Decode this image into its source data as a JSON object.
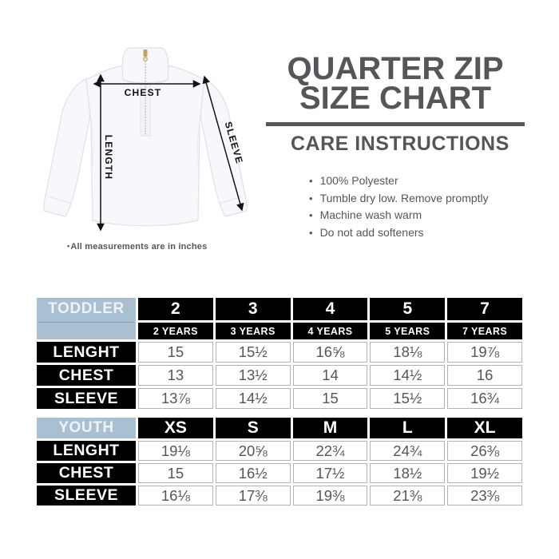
{
  "diagram": {
    "labels": {
      "chest": "CHEST",
      "length": "LENGTH",
      "sleeve": "SLEEVE"
    },
    "note_bullet": "•",
    "note": "All measurements are in inches"
  },
  "header": {
    "title_line1": "QUARTER ZIP",
    "title_line2": "SIZE CHART",
    "care_title": "CARE INSTRUCTIONS",
    "bullet_char": "•",
    "care_items": [
      "100% Polyester",
      "Tumble dry low. Remove promptly",
      "Machine wash warm",
      "Do not add softeners"
    ]
  },
  "colors": {
    "title_gray": "#55565a",
    "table_black": "#000000",
    "group_blue": "#a9bfd2",
    "data_text": "#55565a",
    "cell_border": "#b3b3b3",
    "zipper_gold": "#c5a163",
    "arrow_black": "#141414"
  },
  "tables": [
    {
      "group_label": "TODDLER",
      "columns": [
        "2",
        "3",
        "4",
        "5",
        "7"
      ],
      "sub_columns": [
        "2 YEARS",
        "3 YEARS",
        "4 YEARS",
        "5 YEARS",
        "7 YEARS"
      ],
      "rows": [
        {
          "label": "LENGHT",
          "values": [
            "15",
            "15½",
            "16⅝",
            "18⅛",
            "19⅞"
          ]
        },
        {
          "label": "CHEST",
          "values": [
            "13",
            "13½",
            "14",
            "14½",
            "16"
          ]
        },
        {
          "label": "SLEEVE",
          "values": [
            "13⅞",
            "14½",
            "15",
            "15½",
            "16¾"
          ]
        }
      ]
    },
    {
      "group_label": "YOUTH",
      "columns": [
        "XS",
        "S",
        "M",
        "L",
        "XL"
      ],
      "rows": [
        {
          "label": "LENGHT",
          "values": [
            "19⅛",
            "20⅝",
            "22¾",
            "24¾",
            "26⅜"
          ]
        },
        {
          "label": "CHEST",
          "values": [
            "15",
            "16½",
            "17½",
            "18½",
            "19½"
          ]
        },
        {
          "label": "SLEEVE",
          "values": [
            "16⅛",
            "17⅜",
            "19⅜",
            "21⅜",
            "23⅜"
          ]
        }
      ]
    }
  ]
}
